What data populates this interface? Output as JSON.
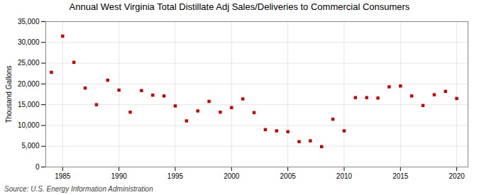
{
  "chart_data": {
    "type": "scatter",
    "title": "Annual West Virginia Total Distillate Adj Sales/Deliveries to Commercial Consumers",
    "ylabel": "Thousand Gallons",
    "source": "Source: U.S. Energy Information Administration",
    "x": [
      1984,
      1985,
      1986,
      1987,
      1988,
      1989,
      1990,
      1991,
      1992,
      1993,
      1994,
      1995,
      1996,
      1997,
      1998,
      1999,
      2000,
      2001,
      2002,
      2003,
      2004,
      2005,
      2006,
      2007,
      2008,
      2009,
      2010,
      2011,
      2012,
      2013,
      2014,
      2015,
      2016,
      2017,
      2018,
      2019,
      2020
    ],
    "values": [
      22800,
      31500,
      25200,
      19000,
      15000,
      20900,
      18500,
      13200,
      18400,
      17300,
      17100,
      14700,
      11100,
      13500,
      15800,
      13200,
      14300,
      16400,
      13100,
      9000,
      8700,
      8500,
      6100,
      6300,
      4900,
      11500,
      8700,
      16700,
      16700,
      16600,
      19300,
      19500,
      17100,
      14800,
      17400,
      18200,
      16500
    ],
    "color": "#cc0000",
    "marker": "square",
    "xlim": [
      1983.5,
      2021
    ],
    "ylim": [
      0,
      35000
    ],
    "xticks": [
      1985,
      1990,
      1995,
      2000,
      2005,
      2010,
      2015,
      2020
    ],
    "yticks": [
      0,
      {
        "value": 5000,
        "label": "5,000"
      },
      {
        "value": 10000,
        "label": "10,000"
      },
      {
        "value": 15000,
        "label": "15,000"
      },
      {
        "value": 20000,
        "label": "20,000"
      },
      {
        "value": 25000,
        "label": "25,000"
      },
      {
        "value": 30000,
        "label": "30,000"
      },
      {
        "value": 35000,
        "label": "35,000"
      }
    ],
    "grid": true
  }
}
